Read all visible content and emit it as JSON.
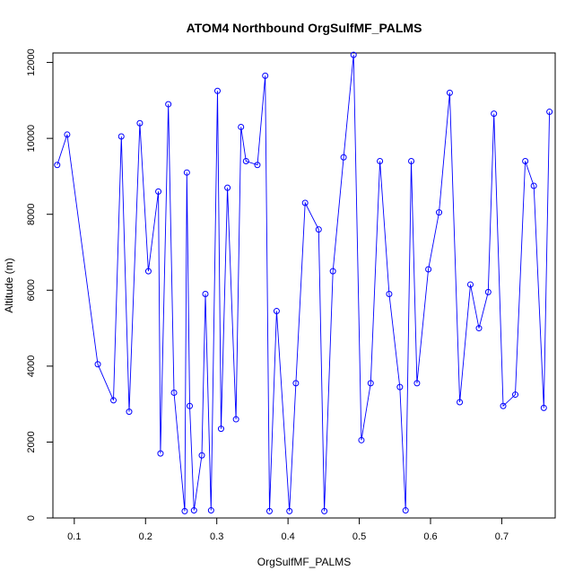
{
  "chart_data": {
    "type": "line",
    "title": "ATOM4 Northbound OrgSulfMF_PALMS",
    "xlabel": "OrgSulfMF_PALMS",
    "ylabel": "Altitude (m)",
    "xlim": [
      0.07,
      0.775
    ],
    "ylim": [
      0,
      12250
    ],
    "x_ticks": [
      0.1,
      0.2,
      0.3,
      0.4,
      0.5,
      0.6,
      0.7
    ],
    "x_tick_labels": [
      "0.1",
      "0.2",
      "0.3",
      "0.4",
      "0.5",
      "0.6",
      "0.7"
    ],
    "y_ticks": [
      0,
      2000,
      4000,
      6000,
      8000,
      10000,
      12000
    ],
    "y_tick_labels": [
      "0",
      "2000",
      "4000",
      "6000",
      "8000",
      "10000",
      "12000"
    ],
    "grid": false,
    "legend": "none",
    "marker": "open-circle",
    "line_color": "#0000ff",
    "series": [
      {
        "x": [
          0.076,
          0.09,
          0.133,
          0.155,
          0.166,
          0.177,
          0.192,
          0.204,
          0.218,
          0.221,
          0.232,
          0.24,
          0.255,
          0.258,
          0.262,
          0.268,
          0.279,
          0.284,
          0.292,
          0.301,
          0.306,
          0.315,
          0.327,
          0.334,
          0.341,
          0.357,
          0.368,
          0.374,
          0.384,
          0.402,
          0.411,
          0.424,
          0.443,
          0.451,
          0.463,
          0.478,
          0.492,
          0.503,
          0.516,
          0.529,
          0.542,
          0.557,
          0.565,
          0.573,
          0.581,
          0.597,
          0.612,
          0.627,
          0.641,
          0.656,
          0.668,
          0.681,
          0.689,
          0.702,
          0.719,
          0.733,
          0.745,
          0.759,
          0.767
        ],
        "y": [
          9300,
          10100,
          4050,
          3100,
          10050,
          2800,
          10400,
          6500,
          8600,
          1700,
          10900,
          3300,
          180,
          9100,
          2950,
          200,
          1650,
          5900,
          200,
          11250,
          2350,
          8700,
          2600,
          10300,
          9400,
          9300,
          11650,
          180,
          5450,
          180,
          3550,
          8300,
          7600,
          180,
          6500,
          9500,
          12200,
          2050,
          3550,
          9400,
          5900,
          3450,
          200,
          9400,
          3550,
          6550,
          8050,
          11200,
          3050,
          6150,
          5000,
          5950,
          10650,
          2950,
          3250,
          9400,
          8750,
          2900,
          10700
        ]
      }
    ]
  }
}
